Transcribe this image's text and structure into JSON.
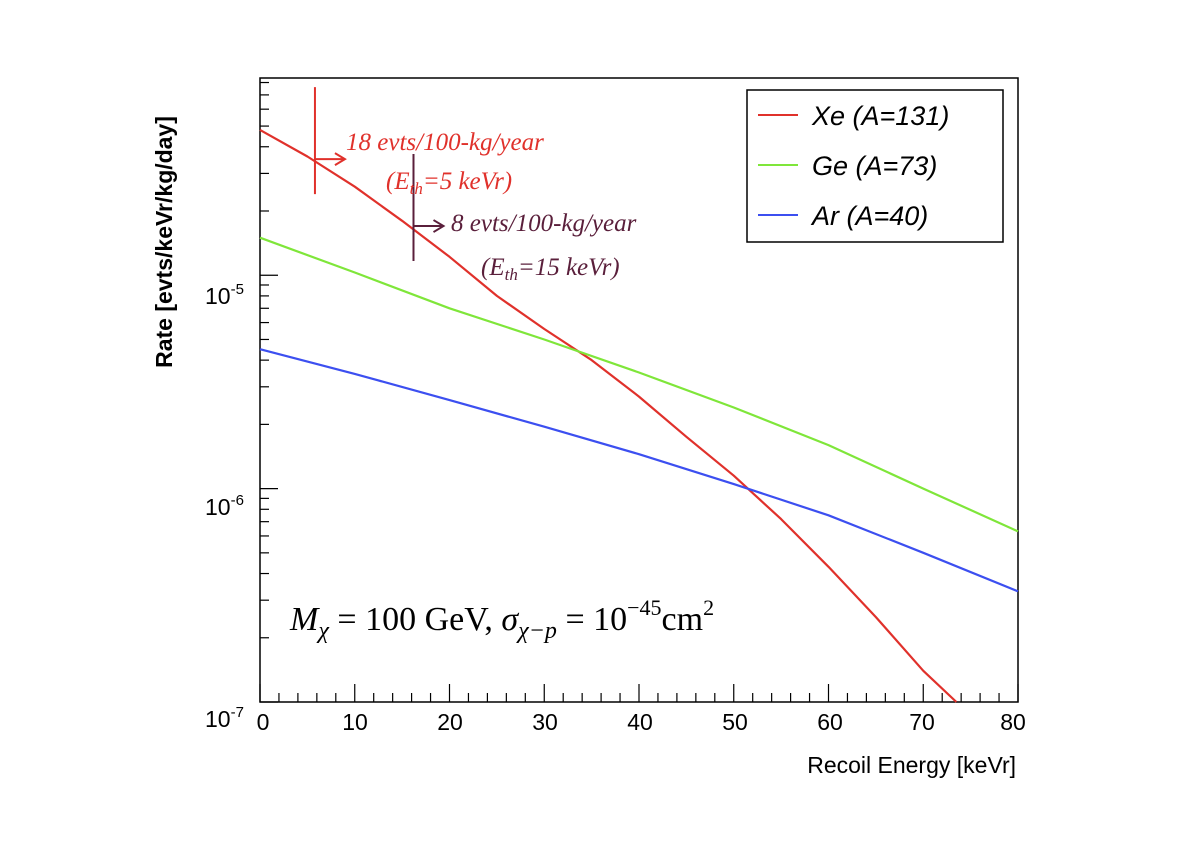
{
  "chart_data": {
    "type": "line",
    "title": "",
    "xlabel": "Recoil Energy [keVr]",
    "ylabel": "Rate [evts/keVr/kg/day]",
    "xlim": [
      0,
      80
    ],
    "ylim": [
      1e-07,
      0.0001
    ],
    "yscale": "log",
    "x_ticks": [
      "0",
      "10",
      "20",
      "30",
      "40",
      "50",
      "60",
      "70",
      "80"
    ],
    "y_ticks": [
      {
        "base": "10",
        "exp": "-7",
        "value": 1e-07
      },
      {
        "base": "10",
        "exp": "-6",
        "value": 1e-06
      },
      {
        "base": "10",
        "exp": "-5",
        "value": 1e-05
      }
    ],
    "legend_position": "top-right",
    "series": [
      {
        "name": "Xe (A=131)",
        "color": "#e0312b",
        "x": [
          0,
          5,
          10,
          15,
          20,
          25,
          30,
          35,
          40,
          45,
          50,
          55,
          60,
          65,
          70,
          73.5
        ],
        "y": [
          4.8e-05,
          3.6e-05,
          2.6e-05,
          1.8e-05,
          1.22e-05,
          8e-06,
          5.6e-06,
          4e-06,
          2.7e-06,
          1.75e-06,
          1.15e-06,
          7.2e-07,
          4.3e-07,
          2.5e-07,
          1.4e-07,
          1e-07
        ]
      },
      {
        "name": "Ge (A=73)",
        "color": "#7fe63a",
        "x": [
          0,
          10,
          20,
          30,
          40,
          50,
          60,
          70,
          80
        ],
        "y": [
          1.5e-05,
          1.03e-05,
          7e-06,
          5e-06,
          3.5e-06,
          2.4e-06,
          1.6e-06,
          1e-06,
          6.3e-07
        ]
      },
      {
        "name": "Ar (A=40)",
        "color": "#3c4ff0",
        "x": [
          0,
          10,
          20,
          30,
          40,
          50,
          60,
          70,
          80
        ],
        "y": [
          4.5e-06,
          3.45e-06,
          2.6e-06,
          1.95e-06,
          1.45e-06,
          1.05e-06,
          7.5e-07,
          5e-07,
          3.3e-07
        ]
      }
    ],
    "annotations": [
      {
        "line1": "18 evts/100-kg/year",
        "line2_open": "(E",
        "line2_sub": "th",
        "line2_close": "=5 keVr)",
        "color": "#e0312b",
        "x": 5.8,
        "y": 3.5e-05
      },
      {
        "line1": "8 evts/100-kg/year",
        "line2_open": "(E",
        "line2_sub": "th",
        "line2_close": "=15 keVr)",
        "color": "#5a1f3b",
        "x": 16.2,
        "y": 1.7e-05
      }
    ],
    "formula": {
      "M": "M",
      "chi": "χ",
      "eq1": " = 100 GeV, ",
      "sigma": "σ",
      "sub2": "χ−p",
      "eq2": " = 10",
      "exp": "−45",
      "unit": "cm",
      "unit_exp": "2"
    }
  }
}
